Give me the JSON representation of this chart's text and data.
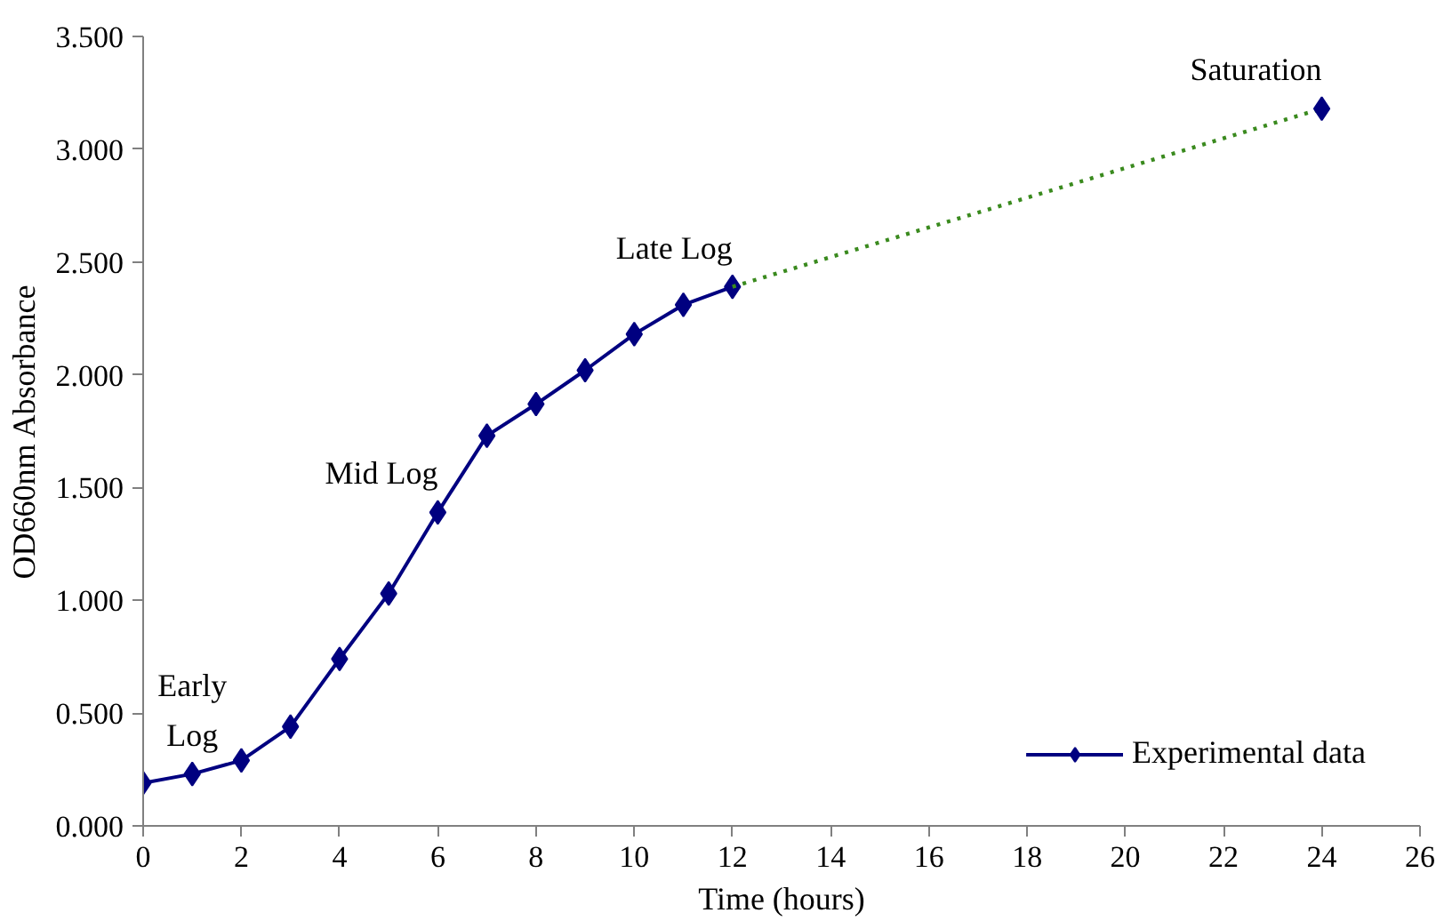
{
  "chart_data": {
    "type": "line",
    "xlabel": "Time (hours)",
    "ylabel": "OD660nm Absorbance",
    "xlim": [
      0,
      26
    ],
    "xticks": [
      0,
      2,
      4,
      6,
      8,
      10,
      12,
      14,
      16,
      18,
      20,
      22,
      24,
      26
    ],
    "ylim": [
      0,
      3.5
    ],
    "yticks": [
      {
        "value": 0,
        "label": "0.000"
      },
      {
        "value": 0.5,
        "label": "0.500"
      },
      {
        "value": 1,
        "label": "1.000"
      },
      {
        "value": 1.5,
        "label": "1.500"
      },
      {
        "value": 2,
        "label": "2.000"
      },
      {
        "value": 2.5,
        "label": "2.500"
      },
      {
        "value": 3,
        "label": "3.000"
      },
      {
        "value": 3.5,
        "label": "3.500"
      }
    ],
    "series": [
      {
        "name": "Experimental data",
        "color": "#000080",
        "x": [
          0,
          1,
          2,
          3,
          4,
          5,
          6,
          7,
          8,
          9,
          10,
          11,
          12
        ],
        "values": [
          0.19,
          0.23,
          0.29,
          0.44,
          0.74,
          1.03,
          1.39,
          1.73,
          1.87,
          2.02,
          2.18,
          2.31,
          2.39
        ],
        "marker": "diamond",
        "line_style": "solid"
      },
      {
        "type": "line",
        "color": "#3a8a1e",
        "x": [
          12,
          24
        ],
        "values": [
          2.39,
          3.18
        ],
        "marker": "none",
        "line_style": "dotted"
      },
      {
        "type": "scatter",
        "color": "#000080",
        "x": [
          24
        ],
        "values": [
          3.18
        ],
        "marker": "diamond"
      }
    ],
    "annotations": [
      {
        "text": "Early\nLog",
        "x": 1,
        "y": 0.23
      },
      {
        "text": "Mid Log",
        "x": 6,
        "y": 1.39
      },
      {
        "text": "Late Log",
        "x": 12,
        "y": 2.39
      },
      {
        "text": "Saturation",
        "x": 24,
        "y": 3.18
      }
    ],
    "grid": false,
    "legend": "bottom right"
  }
}
